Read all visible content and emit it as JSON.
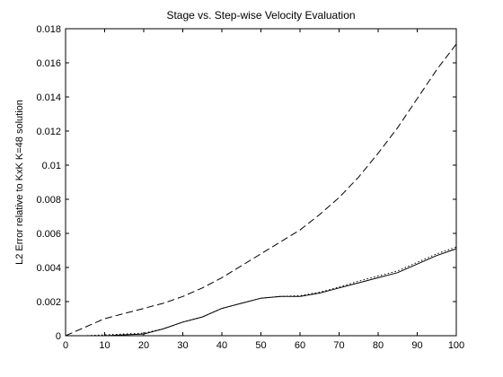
{
  "chart_data": {
    "type": "line",
    "title": "Stage vs. Step-wise Velocity Evaluation",
    "xlabel": "",
    "ylabel": "L2 Error relative to KxK K=48 solution",
    "xlim": [
      0,
      100
    ],
    "ylim": [
      0,
      0.018
    ],
    "x_ticks": [
      0,
      10,
      20,
      30,
      40,
      50,
      60,
      70,
      80,
      90,
      100
    ],
    "x_tick_labels": [
      "0",
      "10",
      "20",
      "30",
      "40",
      "50",
      "60",
      "70",
      "80",
      "90",
      "100"
    ],
    "y_ticks": [
      0,
      0.002,
      0.004,
      0.006,
      0.008,
      0.01,
      0.012,
      0.014,
      0.016,
      0.018
    ],
    "y_tick_labels": [
      "0",
      "0.002",
      "0.004",
      "0.006",
      "0.008",
      "0.01",
      "0.012",
      "0.014",
      "0.016",
      "0.018"
    ],
    "grid": false,
    "legend": "none",
    "x": [
      0,
      5,
      10,
      15,
      20,
      25,
      30,
      35,
      40,
      45,
      50,
      55,
      60,
      65,
      70,
      75,
      80,
      85,
      90,
      95,
      100
    ],
    "series": [
      {
        "style": "dashed",
        "color": "#000000",
        "values": [
          0,
          0.0005,
          0.001,
          0.0013,
          0.0016,
          0.0019,
          0.0023,
          0.0028,
          0.0034,
          0.0041,
          0.0048,
          0.0055,
          0.0062,
          0.0071,
          0.0081,
          0.0093,
          0.0107,
          0.0122,
          0.0139,
          0.0156,
          0.0171
        ]
      },
      {
        "style": "solid",
        "color": "#000000",
        "values": [
          0,
          0,
          0,
          5e-05,
          0.0001,
          0.0004,
          0.0008,
          0.0011,
          0.0016,
          0.0019,
          0.0022,
          0.0023,
          0.0023,
          0.0025,
          0.0028,
          0.0031,
          0.0034,
          0.0037,
          0.0042,
          0.0047,
          0.0051
        ]
      },
      {
        "style": "dotted",
        "color": "#000000",
        "values": [
          0,
          0,
          5e-05,
          0.0001,
          0.00015,
          0.0004,
          0.0008,
          0.0011,
          0.0016,
          0.0019,
          0.0022,
          0.0023,
          0.00235,
          0.00255,
          0.00285,
          0.0032,
          0.0035,
          0.0038,
          0.0043,
          0.0048,
          0.0052
        ]
      }
    ]
  }
}
